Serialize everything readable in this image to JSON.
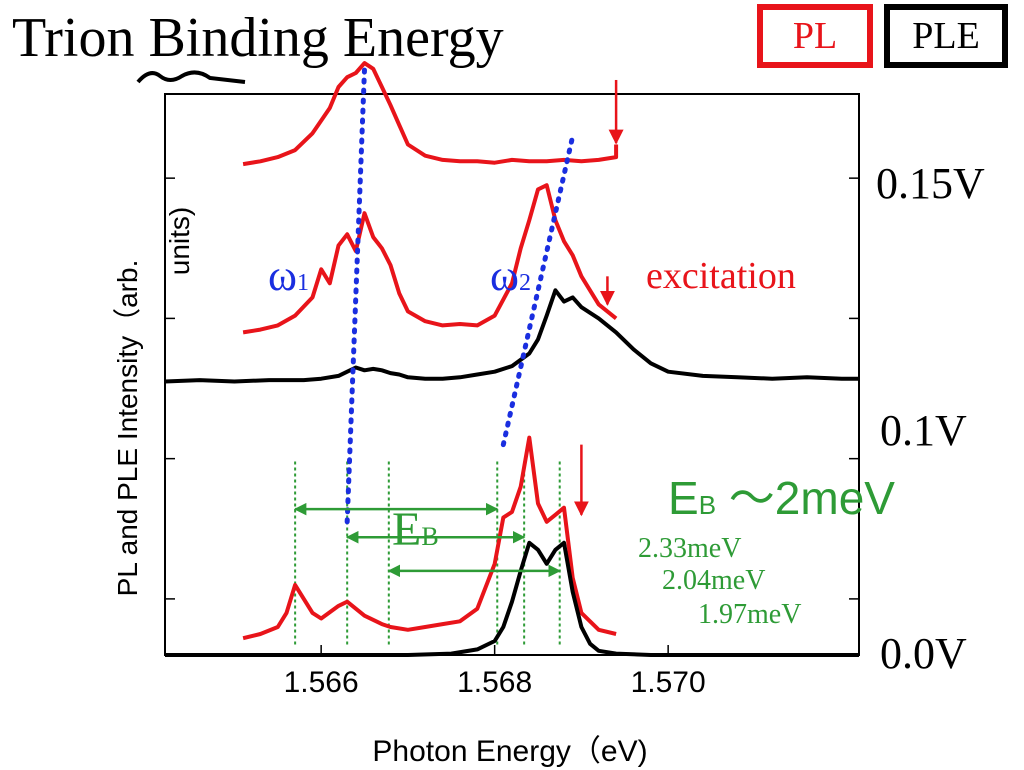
{
  "title": "Trion Binding Energy",
  "legend": {
    "pl": "PL",
    "ple": "PLE"
  },
  "colors": {
    "pl": "#e8141a",
    "ple": "#000000",
    "peak_guide": "#1a2ee0",
    "binding": "#2e9b36"
  },
  "voltages": [
    "0.15V",
    "0.1V",
    "0.0V"
  ],
  "peak_labels": {
    "w1": "ω",
    "w1_sub": "1",
    "w2": "ω",
    "w2_sub": "2"
  },
  "excitation_label": "excitation",
  "eb": {
    "label": "E",
    "sub": "B",
    "summary_prefix": "E",
    "summary_sub": "B",
    "summary_value": " ～2meV"
  },
  "gaps": [
    "2.33meV",
    "2.04meV",
    "1.97meV"
  ],
  "chart_data": {
    "type": "line",
    "xlabel": "Photon Energy（eV)",
    "ylabel": "PL and PLE Intensity（arb. units)",
    "xlim": [
      1.5642,
      1.5722
    ],
    "ylim": [
      0,
      4
    ],
    "xticks": [
      1.566,
      1.568,
      1.57
    ],
    "xtick_labels": [
      "1.566",
      "1.568",
      "1.570"
    ],
    "yticks": [
      0.4,
      1.4,
      2.4,
      3.4
    ],
    "grid": false,
    "legend_position": "top-right",
    "series": [
      {
        "name": "PL",
        "voltage": "0.15V",
        "x": [
          1.5651,
          1.5653,
          1.5655,
          1.5657,
          1.5659,
          1.5661,
          1.5662,
          1.5663,
          1.5664,
          1.5665,
          1.5666,
          1.5667,
          1.5668,
          1.5669,
          1.567,
          1.5672,
          1.5674,
          1.5676,
          1.5678,
          1.568,
          1.5682,
          1.5684,
          1.5686,
          1.5688,
          1.569,
          1.5692,
          1.5694,
          1.5694
        ],
        "y": [
          3.5,
          3.52,
          3.55,
          3.6,
          3.72,
          3.9,
          4.05,
          4.12,
          4.15,
          4.22,
          4.18,
          4.05,
          3.92,
          3.78,
          3.64,
          3.56,
          3.53,
          3.52,
          3.52,
          3.51,
          3.53,
          3.52,
          3.52,
          3.53,
          3.52,
          3.53,
          3.55,
          3.64
        ]
      },
      {
        "name": "PL",
        "voltage": "0.1V",
        "x": [
          1.5651,
          1.5653,
          1.5655,
          1.5657,
          1.5659,
          1.566,
          1.5661,
          1.5662,
          1.5663,
          1.5664,
          1.5665,
          1.5666,
          1.5667,
          1.5668,
          1.5669,
          1.567,
          1.5672,
          1.5674,
          1.5676,
          1.5678,
          1.568,
          1.5682,
          1.5683,
          1.5684,
          1.5685,
          1.5686,
          1.5687,
          1.5688,
          1.5689,
          1.569,
          1.5692,
          1.5694
        ],
        "y": [
          2.3,
          2.32,
          2.35,
          2.42,
          2.55,
          2.75,
          2.65,
          2.92,
          3.0,
          2.88,
          3.15,
          2.98,
          2.9,
          2.78,
          2.58,
          2.45,
          2.38,
          2.35,
          2.36,
          2.35,
          2.42,
          2.65,
          2.9,
          3.1,
          3.32,
          3.35,
          3.1,
          2.95,
          2.85,
          2.7,
          2.5,
          2.4
        ]
      },
      {
        "name": "PLE",
        "voltage": "0.1V",
        "x": [
          1.5642,
          1.5646,
          1.565,
          1.5654,
          1.5658,
          1.566,
          1.5662,
          1.5663,
          1.5664,
          1.5665,
          1.5666,
          1.5667,
          1.5668,
          1.5669,
          1.567,
          1.5672,
          1.5674,
          1.5676,
          1.5678,
          1.568,
          1.5682,
          1.5684,
          1.5685,
          1.5686,
          1.5687,
          1.5688,
          1.5689,
          1.569,
          1.5692,
          1.5694,
          1.5696,
          1.5698,
          1.57,
          1.5704,
          1.5708,
          1.5712,
          1.5716,
          1.572,
          1.5722
        ],
        "y": [
          1.95,
          1.96,
          1.95,
          1.96,
          1.96,
          1.97,
          1.99,
          2.02,
          2.05,
          2.03,
          2.04,
          2.03,
          2.01,
          2.0,
          1.98,
          1.97,
          1.97,
          1.98,
          2.0,
          2.02,
          2.06,
          2.15,
          2.25,
          2.42,
          2.6,
          2.52,
          2.55,
          2.48,
          2.4,
          2.3,
          2.18,
          2.08,
          2.02,
          1.99,
          1.98,
          1.97,
          1.98,
          1.97,
          1.97
        ]
      },
      {
        "name": "PL",
        "voltage": "0.0V",
        "x": [
          1.5651,
          1.5653,
          1.5655,
          1.5656,
          1.5657,
          1.5658,
          1.5659,
          1.566,
          1.5662,
          1.5663,
          1.5665,
          1.5667,
          1.5668,
          1.567,
          1.5672,
          1.5674,
          1.5676,
          1.5678,
          1.568,
          1.5681,
          1.5682,
          1.5683,
          1.5684,
          1.5685,
          1.5686,
          1.5687,
          1.5688,
          1.5689,
          1.569,
          1.5692,
          1.5694
        ],
        "y": [
          0.12,
          0.15,
          0.2,
          0.3,
          0.5,
          0.4,
          0.3,
          0.26,
          0.35,
          0.38,
          0.28,
          0.22,
          0.2,
          0.18,
          0.2,
          0.22,
          0.24,
          0.33,
          0.65,
          0.98,
          1.02,
          1.2,
          1.55,
          1.08,
          0.95,
          1.0,
          1.05,
          0.55,
          0.3,
          0.18,
          0.15
        ]
      },
      {
        "name": "PLE",
        "voltage": "0.0V",
        "x": [
          1.5642,
          1.565,
          1.566,
          1.567,
          1.5675,
          1.5678,
          1.568,
          1.5681,
          1.5682,
          1.5683,
          1.5684,
          1.5685,
          1.5686,
          1.5687,
          1.5688,
          1.5689,
          1.569,
          1.5691,
          1.5692,
          1.5694,
          1.5698,
          1.5705,
          1.5712,
          1.5722
        ],
        "y": [
          0.0,
          0.0,
          0.0,
          0.0,
          0.01,
          0.04,
          0.1,
          0.2,
          0.38,
          0.6,
          0.8,
          0.75,
          0.65,
          0.75,
          0.8,
          0.45,
          0.2,
          0.08,
          0.03,
          0.01,
          0.0,
          0.0,
          0.0,
          0.0
        ]
      }
    ],
    "peak_guides": [
      {
        "name": "ω1",
        "from": [
          1.5663,
          0.95
        ],
        "to": [
          1.5665,
          4.18
        ]
      },
      {
        "name": "ω2",
        "from": [
          1.5681,
          1.5
        ],
        "to": [
          1.5689,
          3.7
        ]
      }
    ],
    "excitation_markers": [
      {
        "x": 1.5694,
        "y_top": 4.1,
        "y_bottom": 3.65
      },
      {
        "x": 1.5693,
        "y_top": 2.7,
        "y_bottom": 2.5
      },
      {
        "x": 1.569,
        "y_top": 1.5,
        "y_bottom": 1.0
      }
    ],
    "binding_arrows": [
      {
        "from": 1.5657,
        "to": 1.56803,
        "value": "2.33meV"
      },
      {
        "from": 1.5663,
        "to": 1.56834,
        "value": "2.04meV"
      },
      {
        "from": 1.56678,
        "to": 1.56875,
        "value": "1.97meV"
      }
    ],
    "binding_guides": [
      1.5657,
      1.5663,
      1.56678,
      1.56803,
      1.56834,
      1.56875
    ]
  }
}
